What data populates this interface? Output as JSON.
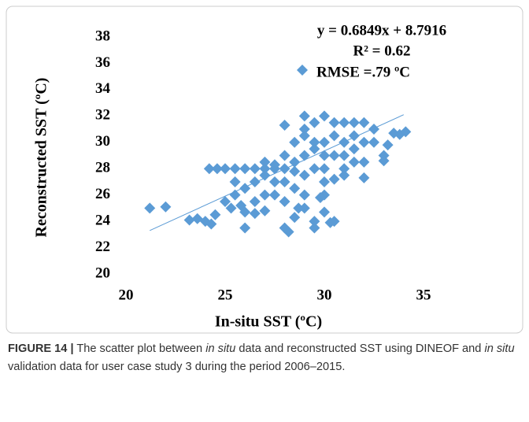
{
  "chart_data": {
    "type": "scatter",
    "annotations": [
      "y = 0.6849x + 8.7916",
      "R² = 0.62"
    ],
    "x_label": "In-situ SST (ºC)",
    "y_label": "Reconstructed  SST (ºC)",
    "xlim": [
      20,
      35
    ],
    "ylim": [
      20,
      38
    ],
    "xticks": [
      20,
      25,
      30,
      35
    ],
    "yticks": [
      20,
      22,
      24,
      26,
      28,
      30,
      32,
      34,
      36,
      38
    ],
    "trendline": {
      "color": "#5b9bd5",
      "x": [
        21.2,
        34
      ],
      "y": [
        23.3,
        32.1
      ]
    },
    "series": [
      {
        "name": "RMSE =.79 ºC",
        "color": "#5b9bd5",
        "x": [
          21.2,
          22,
          23.2,
          23.6,
          24,
          24.3,
          24.5,
          24.2,
          24.6,
          25,
          25.5,
          26,
          26.5,
          27,
          27.5,
          28,
          25,
          25.3,
          25.8,
          25.5,
          26,
          26.5,
          27,
          26,
          26.5,
          27,
          26,
          25.5,
          27.5,
          28,
          28,
          28.5,
          28.5,
          29,
          29,
          29,
          29,
          29.5,
          29.5,
          29.5,
          30,
          30,
          30,
          30,
          30,
          30,
          30.5,
          30.5,
          31,
          31,
          31,
          31,
          31.5,
          31.5,
          32,
          32,
          32,
          32.5,
          32.5,
          33,
          33,
          33.2,
          33.5,
          33.8,
          34.1,
          28,
          28.2,
          28.5,
          28.7,
          29,
          29,
          29.5,
          29.5,
          30,
          30.3,
          30.5,
          29.8,
          28.5,
          27.5,
          27,
          28,
          26.5,
          31,
          31.5,
          32,
          30.5,
          29,
          28.5,
          29.5,
          30.5,
          31.5,
          28,
          27.5,
          27
        ],
        "values": [
          25,
          25.1,
          24.1,
          24.2,
          24,
          23.8,
          24.5,
          28,
          28,
          28,
          28,
          28,
          28,
          28,
          28,
          28,
          25.5,
          25,
          25.2,
          26,
          26.5,
          27,
          27.5,
          24.7,
          24.6,
          24.8,
          23.5,
          27,
          26,
          27,
          29,
          30,
          28.5,
          29,
          32,
          31,
          30.5,
          30,
          28,
          31.5,
          32,
          30,
          29,
          28,
          27,
          26,
          31.5,
          30.5,
          31.5,
          30,
          29,
          27.5,
          31.5,
          30.5,
          31.5,
          30,
          28.5,
          31,
          30,
          29,
          28.6,
          29.8,
          30.7,
          30.6,
          30.8,
          23.5,
          23.2,
          24.3,
          25,
          26,
          25,
          23.5,
          24,
          24.7,
          23.9,
          24,
          25.8,
          26.5,
          27,
          26,
          25.5,
          25.5,
          28,
          28.5,
          27.3,
          27.2,
          27.5,
          27.8,
          29.5,
          29,
          29.5,
          31.3,
          28.3,
          28.5
        ]
      }
    ]
  },
  "caption": {
    "label": "FIGURE 14 |",
    "parts": [
      {
        "text": " The scatter plot between ",
        "italic": false
      },
      {
        "text": "in situ",
        "italic": true
      },
      {
        "text": " data and reconstructed SST using DINEOF and ",
        "italic": false
      },
      {
        "text": "in situ",
        "italic": true
      },
      {
        "text": " validation data for user case study 3 during the period 2006–2015.",
        "italic": false
      }
    ]
  }
}
